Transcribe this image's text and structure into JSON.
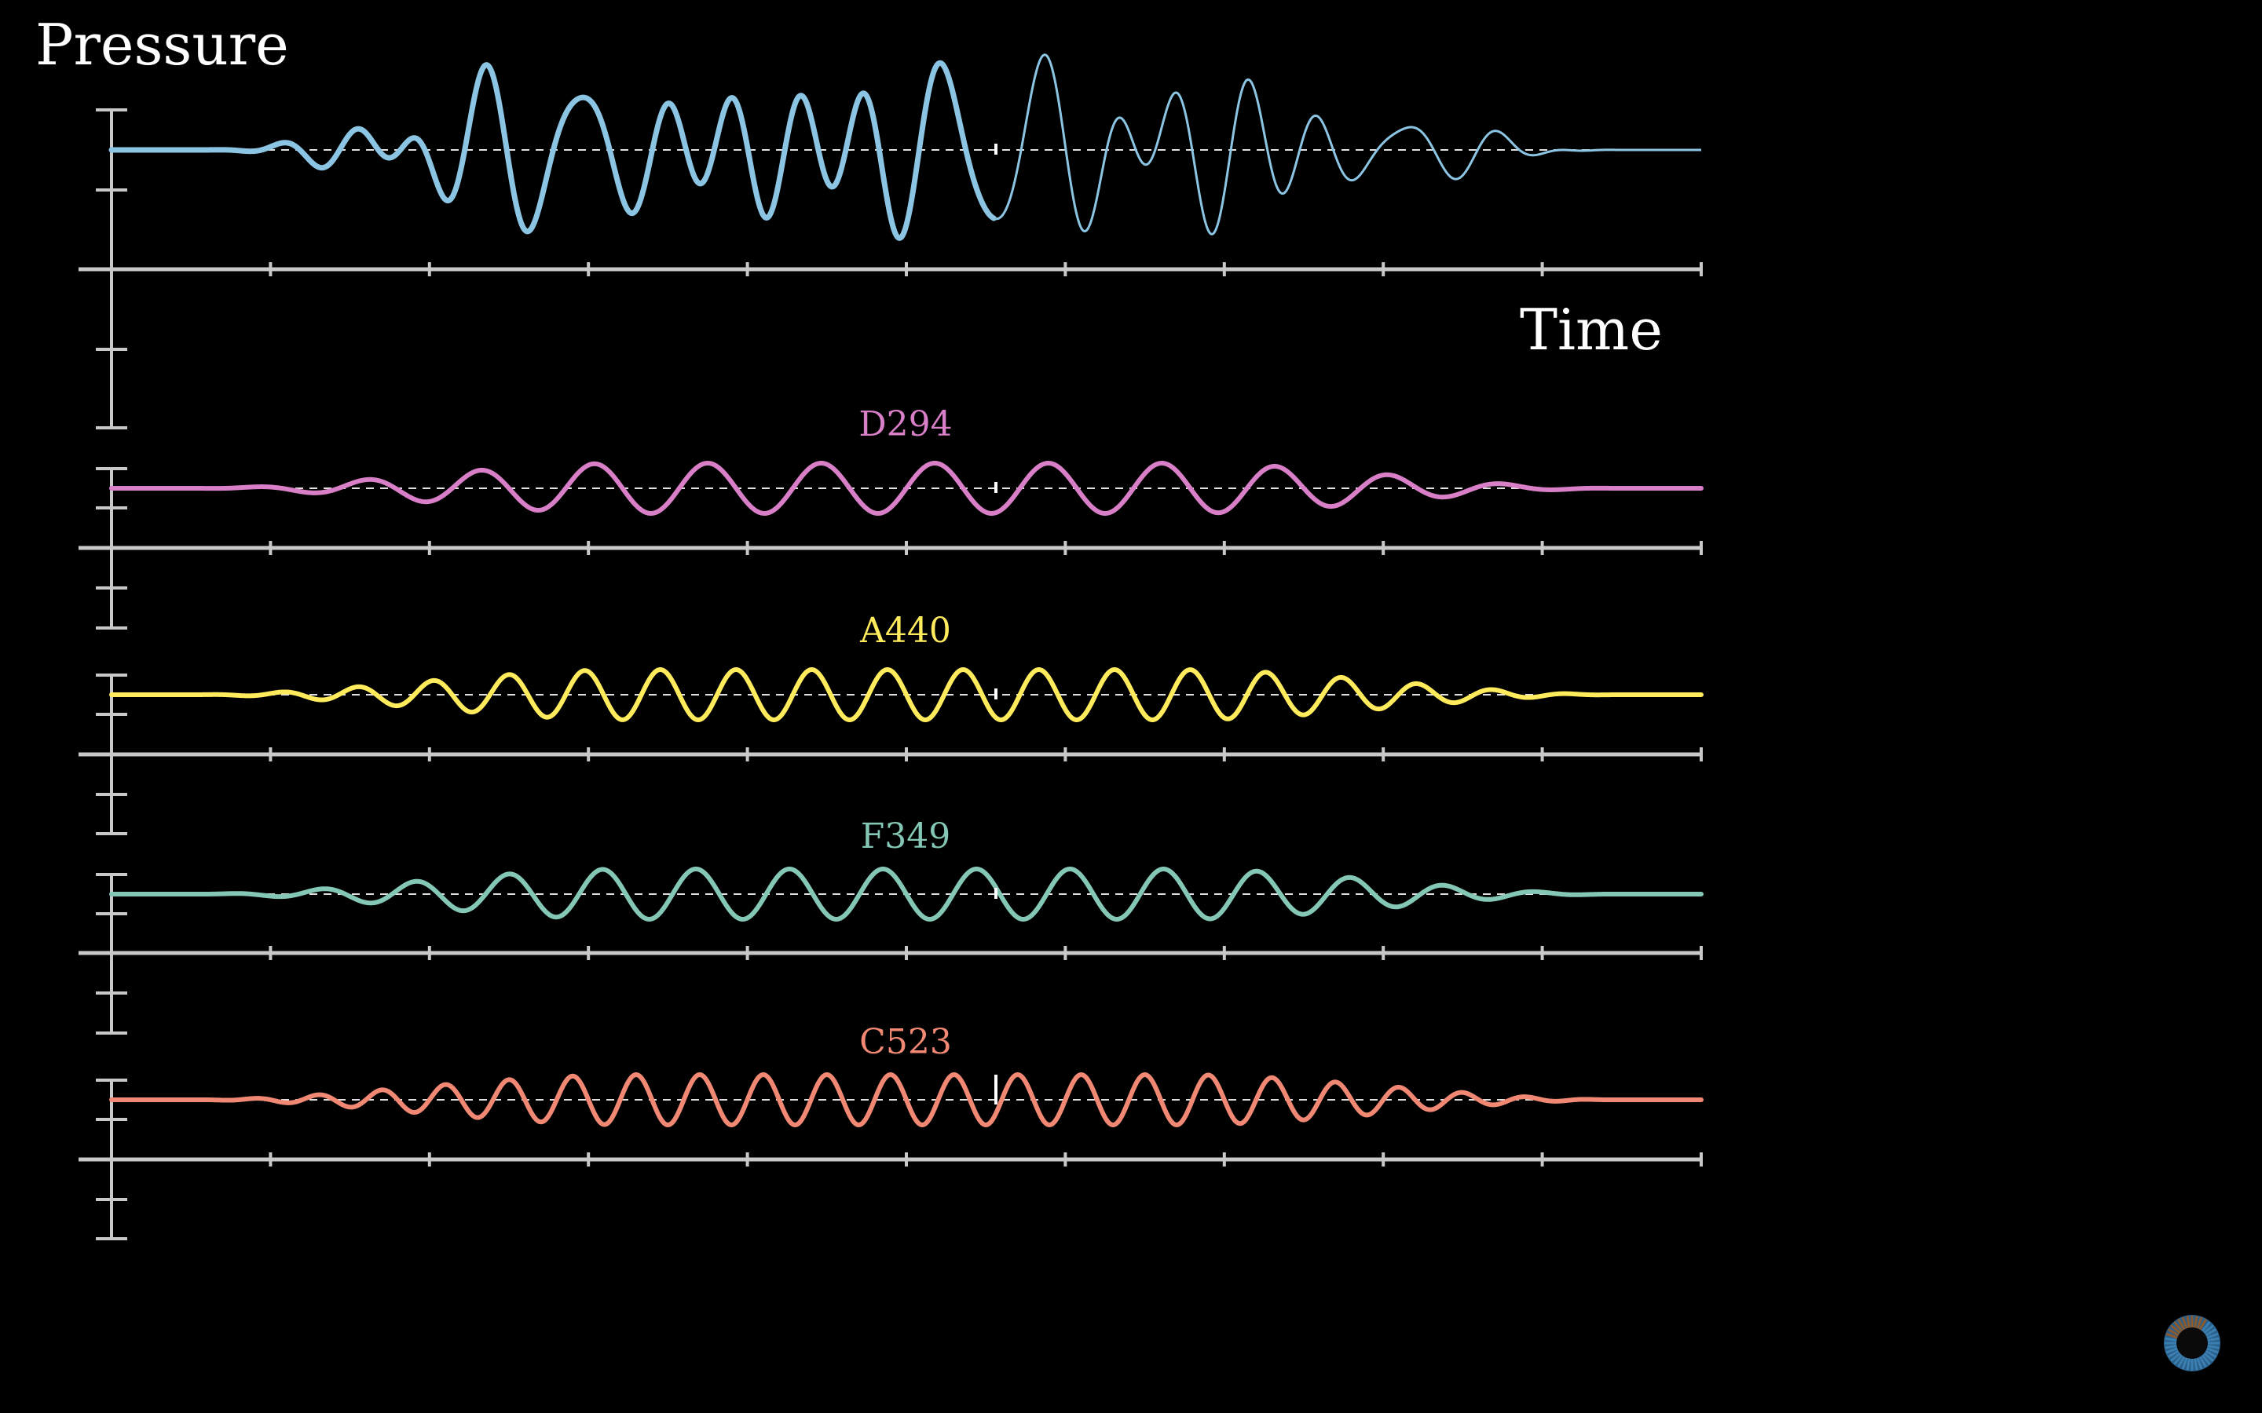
{
  "chart_data": {
    "type": "line",
    "ylabel": "Pressure",
    "xlabel": "Time",
    "x_ticks": 10,
    "grid": false,
    "series": [
      {
        "name": "",
        "color": "#8cc5e3",
        "kind": "composite"
      },
      {
        "name": "D294",
        "color": "#d97fc8",
        "cycles": 14
      },
      {
        "name": "A440",
        "color": "#ffeb5c",
        "cycles": 21
      },
      {
        "name": "F349",
        "color": "#83c7b4",
        "cycles": 17
      },
      {
        "name": "C523",
        "color": "#f08873",
        "cycles": 25
      }
    ]
  },
  "logo": {
    "name": "3blue1brown-pi-logo",
    "colors": [
      "#3b7fb0",
      "#8a5a2e"
    ]
  }
}
